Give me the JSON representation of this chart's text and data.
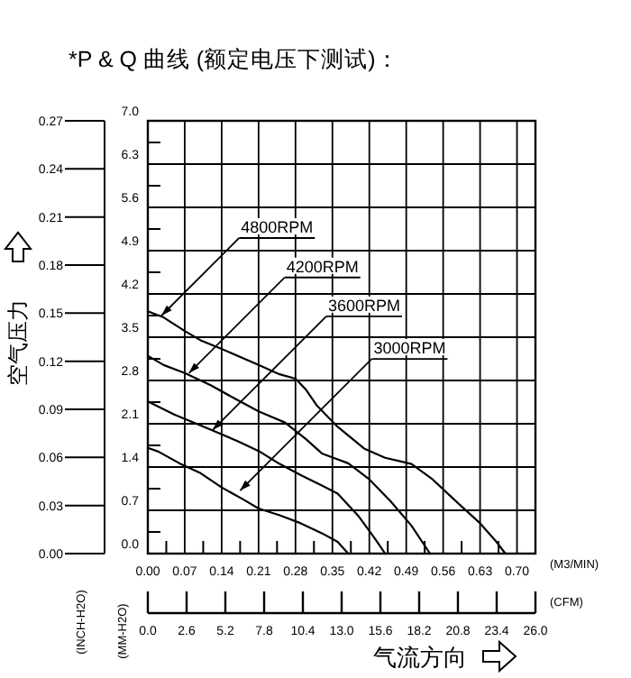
{
  "chart_data": {
    "type": "line",
    "title": "*P & Q 曲线 (额定电压下测试)：",
    "xlabel": "(M3/MIN)",
    "x2label": "(CFM)",
    "ylabel": "(MM-H2O)",
    "y2label": "(INCH-H2O)",
    "annotations": [
      "空气压力",
      "气流方向",
      {
        "text": "4800RPM",
        "x": 0.026,
        "y": 3.85
      },
      {
        "text": "4200RPM",
        "x": 0.078,
        "y": 2.92
      },
      {
        "text": "3600RPM",
        "x": 0.123,
        "y": 2.0
      },
      {
        "text": "3000RPM",
        "x": 0.175,
        "y": 1.02
      }
    ],
    "xlim": [
      0,
      0.735
    ],
    "ylim": [
      0,
      7.0
    ],
    "x2lim": [
      0,
      26.0
    ],
    "y2lim": [
      0,
      0.27
    ],
    "xticks": [
      {
        "value": 0,
        "label": "0.00"
      },
      {
        "value": 0.07,
        "label": "0.07"
      },
      {
        "value": 0.14,
        "label": "0.14"
      },
      {
        "value": 0.21,
        "label": "0.21"
      },
      {
        "value": 0.28,
        "label": "0.28"
      },
      {
        "value": 0.35,
        "label": "0.35"
      },
      {
        "value": 0.42,
        "label": "0.42"
      },
      {
        "value": 0.49,
        "label": "0.49"
      },
      {
        "value": 0.56,
        "label": "0.56"
      },
      {
        "value": 0.63,
        "label": "0.63"
      },
      {
        "value": 0.7,
        "label": "0.70"
      },
      {
        "value": 0.035,
        "label": null
      },
      {
        "value": 0.105,
        "label": null
      },
      {
        "value": 0.175,
        "label": null
      },
      {
        "value": 0.245,
        "label": null
      },
      {
        "value": 0.315,
        "label": null
      },
      {
        "value": 0.385,
        "label": null
      },
      {
        "value": 0.455,
        "label": null
      },
      {
        "value": 0.525,
        "label": null
      },
      {
        "value": 0.595,
        "label": null
      },
      {
        "value": 0.665,
        "label": null
      }
    ],
    "yticks": [
      {
        "value": 0,
        "label": "0.0"
      },
      {
        "value": 0.7,
        "label": "0.7"
      },
      {
        "value": 1.4,
        "label": "1.4"
      },
      {
        "value": 2.1,
        "label": "2.1"
      },
      {
        "value": 2.8,
        "label": "2.8"
      },
      {
        "value": 3.5,
        "label": "3.5"
      },
      {
        "value": 4.2,
        "label": "4.2"
      },
      {
        "value": 4.9,
        "label": "4.9"
      },
      {
        "value": 5.6,
        "label": "5.6"
      },
      {
        "value": 6.3,
        "label": "6.3"
      },
      {
        "value": 7.0,
        "label": "7.0"
      },
      {
        "value": 0.35,
        "label": null
      },
      {
        "value": 1.05,
        "label": null
      },
      {
        "value": 1.75,
        "label": null
      },
      {
        "value": 2.45,
        "label": null
      },
      {
        "value": 3.15,
        "label": null
      },
      {
        "value": 3.85,
        "label": null
      },
      {
        "value": 4.55,
        "label": null
      },
      {
        "value": 5.25,
        "label": null
      },
      {
        "value": 5.95,
        "label": null
      },
      {
        "value": 6.65,
        "label": null
      }
    ],
    "x2ticks": [
      {
        "value": 0,
        "label": "0.0"
      },
      {
        "value": 2.6,
        "label": "2.6"
      },
      {
        "value": 5.2,
        "label": "5.2"
      },
      {
        "value": 7.8,
        "label": "7.8"
      },
      {
        "value": 10.4,
        "label": "10.4"
      },
      {
        "value": 13.0,
        "label": "13.0"
      },
      {
        "value": 15.6,
        "label": "15.6"
      },
      {
        "value": 18.2,
        "label": "18.2"
      },
      {
        "value": 20.8,
        "label": "20.8"
      },
      {
        "value": 23.4,
        "label": "23.4"
      },
      {
        "value": 26.0,
        "label": "26.0"
      }
    ],
    "y2ticks": [
      {
        "value": 0,
        "label": "0.00"
      },
      {
        "value": 0.03,
        "label": "0.03"
      },
      {
        "value": 0.06,
        "label": "0.06"
      },
      {
        "value": 0.09,
        "label": "0.09"
      },
      {
        "value": 0.12,
        "label": "0.12"
      },
      {
        "value": 0.15,
        "label": "0.15"
      },
      {
        "value": 0.18,
        "label": "0.18"
      },
      {
        "value": 0.21,
        "label": "0.21"
      },
      {
        "value": 0.24,
        "label": "0.24"
      },
      {
        "value": 0.27,
        "label": "0.27"
      }
    ],
    "grid": true,
    "line_style": "solid",
    "marker": "none",
    "series": [
      {
        "color": "#000000",
        "x": [
          0,
          0.03,
          0.07,
          0.1,
          0.14,
          0.21,
          0.25,
          0.28,
          0.3,
          0.32,
          0.36,
          0.41,
          0.45,
          0.5,
          0.54,
          0.58,
          0.63,
          0.66,
          0.678
        ],
        "values": [
          3.92,
          3.82,
          3.6,
          3.45,
          3.31,
          3.05,
          2.9,
          2.83,
          2.65,
          2.4,
          2.05,
          1.7,
          1.55,
          1.45,
          1.2,
          0.88,
          0.49,
          0.2,
          0
        ]
      },
      {
        "color": "#000000",
        "x": [
          0,
          0.03,
          0.07,
          0.12,
          0.16,
          0.21,
          0.26,
          0.3,
          0.33,
          0.38,
          0.42,
          0.46,
          0.5,
          0.535
        ],
        "values": [
          3.2,
          3.05,
          2.92,
          2.72,
          2.53,
          2.3,
          2.12,
          1.85,
          1.62,
          1.46,
          1.2,
          0.85,
          0.45,
          0
        ]
      },
      {
        "color": "#000000",
        "x": [
          0,
          0.05,
          0.12,
          0.17,
          0.21,
          0.25,
          0.29,
          0.33,
          0.36,
          0.4,
          0.43,
          0.45
        ],
        "values": [
          2.46,
          2.25,
          2.0,
          1.82,
          1.66,
          1.45,
          1.27,
          1.1,
          0.97,
          0.6,
          0.25,
          0
        ]
      },
      {
        "color": "#000000",
        "x": [
          0,
          0.02,
          0.06,
          0.1,
          0.14,
          0.18,
          0.21,
          0.25,
          0.29,
          0.33,
          0.36,
          0.38
        ],
        "values": [
          1.71,
          1.65,
          1.46,
          1.3,
          1.07,
          0.88,
          0.73,
          0.62,
          0.49,
          0.33,
          0.19,
          0
        ]
      }
    ]
  }
}
